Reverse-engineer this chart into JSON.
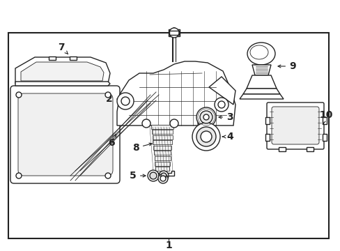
{
  "bg_color": "#ffffff",
  "border_color": "#222222",
  "line_color": "#222222",
  "fig_width": 4.89,
  "fig_height": 3.6,
  "dpi": 100,
  "label_font_size": 10,
  "lw_main": 1.0,
  "lw_thin": 0.6
}
